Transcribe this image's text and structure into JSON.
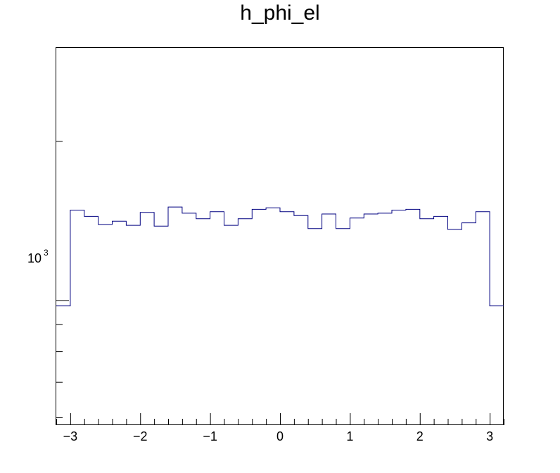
{
  "chart_data": {
    "type": "histogram",
    "title": "h_phi_el",
    "xlabel": "",
    "ylabel": "",
    "xlim": [
      -3.2,
      3.2
    ],
    "ylim": [
      580,
      3000
    ],
    "y_scale": "log",
    "grid": false,
    "legend": "none",
    "line_color": "#000080",
    "x_ticks": [
      -3,
      -2,
      -1,
      0,
      1,
      2,
      3
    ],
    "x_tick_labels": [
      "−3",
      "−2",
      "−1",
      "0",
      "1",
      "2",
      "3"
    ],
    "y_tick_label_base": "10",
    "y_tick_label_exp": "3",
    "y_major_ticks": [
      1000
    ],
    "y_minor_ticks": [
      600,
      700,
      800,
      900,
      2000
    ],
    "bin_edges": [
      -3.2,
      -3.0,
      -2.8,
      -2.6,
      -2.4,
      -2.2,
      -2.0,
      -1.8,
      -1.6,
      -1.4,
      -1.2,
      -1.0,
      -0.8,
      -0.6,
      -0.4,
      -0.2,
      0.0,
      0.2,
      0.4,
      0.6,
      0.8,
      1.0,
      1.2,
      1.4,
      1.6,
      1.8,
      2.0,
      2.2,
      2.4,
      2.6,
      2.8,
      3.0,
      3.2
    ],
    "values": [
      975,
      1480,
      1440,
      1390,
      1410,
      1385,
      1465,
      1380,
      1500,
      1460,
      1425,
      1470,
      1385,
      1425,
      1485,
      1495,
      1470,
      1445,
      1365,
      1455,
      1365,
      1430,
      1455,
      1460,
      1480,
      1485,
      1425,
      1440,
      1360,
      1400,
      1470,
      975
    ]
  }
}
